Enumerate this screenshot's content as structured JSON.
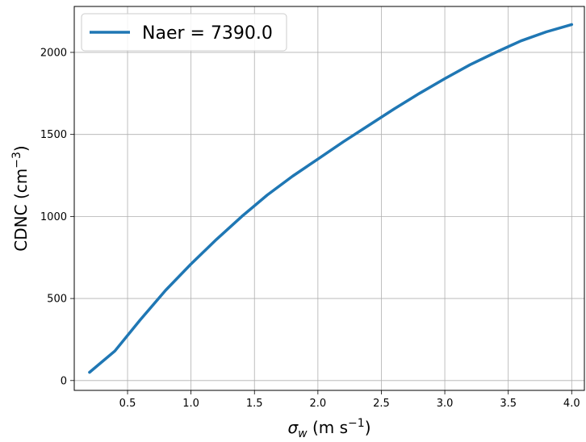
{
  "chart_data": {
    "type": "line",
    "title": "",
    "xlabel": "σ_w (m s⁻¹)",
    "ylabel": "CDNC (cm⁻³)",
    "xlim": [
      0.08,
      4.1
    ],
    "ylim": [
      -60,
      2280
    ],
    "xticks": [
      "0.5",
      "1.0",
      "1.5",
      "2.0",
      "2.5",
      "3.0",
      "3.5",
      "4.0"
    ],
    "yticks": [
      "0",
      "500",
      "1000",
      "1500",
      "2000"
    ],
    "grid": true,
    "legend_position": "top-left",
    "series": [
      {
        "name": "Naer = 7390.0",
        "color": "#1f77b4",
        "x": [
          0.2,
          0.4,
          0.6,
          0.8,
          1.0,
          1.2,
          1.4,
          1.6,
          1.8,
          2.0,
          2.2,
          2.4,
          2.6,
          2.8,
          3.0,
          3.2,
          3.4,
          3.6,
          3.8,
          4.0
        ],
        "y": [
          50,
          180,
          370,
          550,
          710,
          860,
          1000,
          1130,
          1245,
          1350,
          1455,
          1555,
          1655,
          1750,
          1840,
          1925,
          2000,
          2070,
          2125,
          2170
        ]
      }
    ]
  }
}
